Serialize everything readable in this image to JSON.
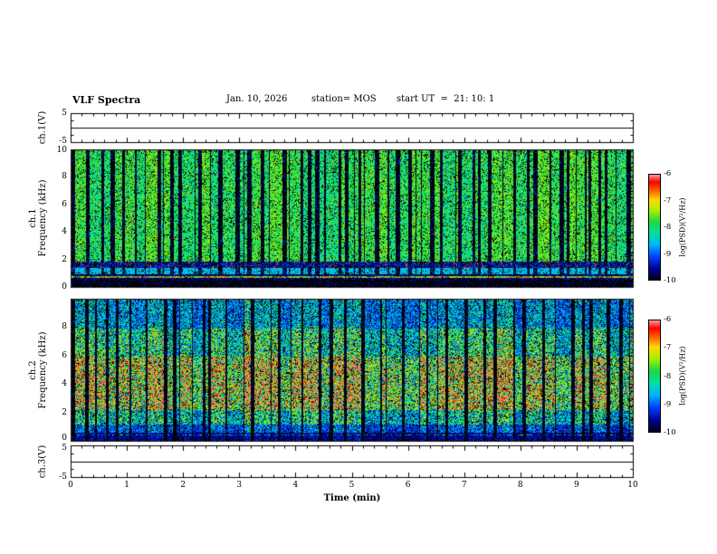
{
  "header": {
    "title": "VLF Spectra",
    "date": "Jan. 10, 2026",
    "station": "station= MOS",
    "start_ut": "start UT  =  21: 10: 1"
  },
  "x_axis": {
    "label": "Time (min)",
    "min": 0,
    "max": 10,
    "major_ticks": [
      0,
      1,
      2,
      3,
      4,
      5,
      6,
      7,
      8,
      9,
      10
    ]
  },
  "panels": {
    "ch1v": {
      "label": "ch.1(V)",
      "ymin": -5,
      "ymax": 5,
      "ticks": [
        5,
        -5
      ]
    },
    "spec1": {
      "channel": "ch.1",
      "ylabel": "Frequency (kHz)",
      "ymin": 0,
      "ymax": 10,
      "ticks": [
        10,
        8,
        6,
        4,
        2,
        0
      ]
    },
    "spec2": {
      "channel": "ch.2",
      "ylabel": "Frequency (kHz)",
      "ymin": 0,
      "ymax": 10,
      "ticks": [
        8,
        6,
        4,
        2,
        0
      ]
    },
    "ch3v": {
      "label": "ch.3(V)",
      "ymin": -5,
      "ymax": 5,
      "ticks": [
        5,
        -5
      ]
    }
  },
  "colorbars": [
    {
      "label": "log(PSD)(V²/Hz)",
      "ticks": [
        -6,
        -7,
        -8,
        -9,
        -10
      ],
      "max": -6,
      "min": -10
    },
    {
      "label": "log(PSD)(V²/Hz)",
      "ticks": [
        -6,
        -7,
        -8,
        -9,
        -10
      ],
      "max": -6,
      "min": -10
    }
  ],
  "colors": {
    "background": "#ffffff",
    "frame": "#000000",
    "spectrogram_background": "#000000"
  },
  "palette": [
    {
      "v": 0.0,
      "c": "#000018"
    },
    {
      "v": 0.1,
      "c": "#000090"
    },
    {
      "v": 0.22,
      "c": "#0040ff"
    },
    {
      "v": 0.33,
      "c": "#00b4ff"
    },
    {
      "v": 0.44,
      "c": "#00e0a0"
    },
    {
      "v": 0.55,
      "c": "#20d840"
    },
    {
      "v": 0.66,
      "c": "#a8f000"
    },
    {
      "v": 0.76,
      "c": "#ffd800"
    },
    {
      "v": 0.85,
      "c": "#ff6000"
    },
    {
      "v": 0.93,
      "c": "#ff0000"
    },
    {
      "v": 1.0,
      "c": "#ff9c9c"
    }
  ],
  "chart_data": [
    {
      "type": "line",
      "name": "ch1-voltage",
      "xlabel": "Time (min)",
      "xlim": [
        0,
        10
      ],
      "ylabel": "ch.1(V)",
      "ylim": [
        -5,
        5
      ],
      "series": [
        {
          "name": "ch.1(V)",
          "x": [
            0,
            10
          ],
          "y": [
            0,
            0
          ],
          "description": "flat ~0 V baseline across the full 10 minutes"
        }
      ]
    },
    {
      "type": "heatmap",
      "name": "ch1-spectrogram",
      "xlabel": "Time (min)",
      "xlim": [
        0,
        10
      ],
      "ylabel": "ch.1 Frequency (kHz)",
      "ylim": [
        0,
        10
      ],
      "zlabel": "log(PSD)(V²/Hz)",
      "zlim": [
        -10,
        -6
      ],
      "description": "Dense vertical green/teal burst columns spanning ~2-10 kHz separated by black gaps; a bright cyan horizontal band near 1-1.4 kHz; a thin multicolored line near 0.7 kHz; sparse red speckles near 1.5-1.9 kHz; near-black below 0.5 kHz."
    },
    {
      "type": "heatmap",
      "name": "ch2-spectrogram",
      "xlabel": "Time (min)",
      "xlim": [
        0,
        10
      ],
      "ylabel": "ch.2 Frequency (kHz)",
      "ylim": [
        0,
        10
      ],
      "zlabel": "log(PSD)(V²/Hz)",
      "zlim": [
        -10,
        -6
      ],
      "description": "Vertical burst columns with blue/cyan background and orange-red high-power cores concentrated between ~2-6 kHz; dimmer blue speckle above 8 kHz; dark band with sparse blue dots below ~1 kHz; black gaps between bursts."
    },
    {
      "type": "line",
      "name": "ch3-voltage",
      "xlabel": "Time (min)",
      "xlim": [
        0,
        10
      ],
      "ylabel": "ch.3(V)",
      "ylim": [
        -5,
        5
      ],
      "series": [
        {
          "name": "ch.3(V)",
          "x": [
            0,
            10
          ],
          "y": [
            0,
            0
          ],
          "description": "flat ~0 V baseline across the full 10 minutes"
        }
      ]
    }
  ]
}
